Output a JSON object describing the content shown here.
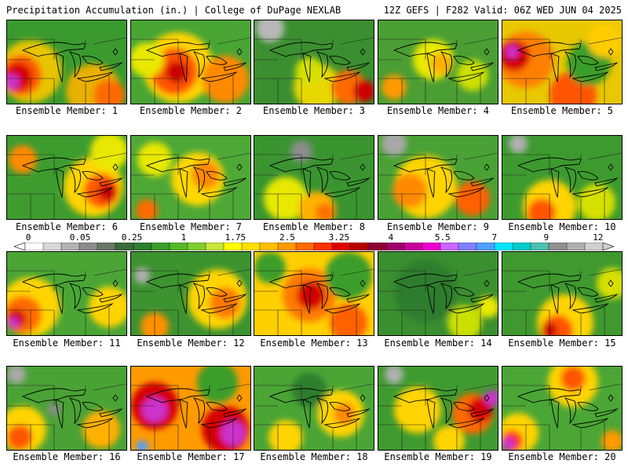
{
  "header": {
    "title_left": "Precipitation Accumulation (in.) | College of DuPage NEXLAB",
    "title_right": "12Z GEFS | F282 Valid: 06Z WED JUN 04 2025"
  },
  "colorbar": {
    "labels": [
      "0",
      "0.05",
      "0.25",
      "1",
      "1.75",
      "2.5",
      "3.25",
      "4",
      "5.5",
      "7",
      "9",
      "12"
    ],
    "colors": [
      "#ffffff",
      "#d8d8d8",
      "#b2b2b2",
      "#8c8c8c",
      "#667766",
      "#3a6b3a",
      "#2e7d2e",
      "#3b9d2a",
      "#55b82a",
      "#7fcf2f",
      "#c8e63a",
      "#ffff00",
      "#ffe000",
      "#ffc000",
      "#ff9900",
      "#ff6a00",
      "#ff3300",
      "#e00000",
      "#b80000",
      "#8c0033",
      "#a0006a",
      "#c8009a",
      "#ee00d0",
      "#cc66ff",
      "#7f7fff",
      "#4fa0ff",
      "#00e5ff",
      "#00cccc",
      "#4cc0b0",
      "#909090",
      "#b0b0b0",
      "#d0d0d0"
    ]
  },
  "panels": [
    {
      "caption": "Ensemble Member: 1",
      "base": "#3a9a2e",
      "blobs": [
        {
          "c": "#e8c400",
          "x": 30,
          "y": 65,
          "r": 40
        },
        {
          "c": "#ff5a00",
          "x": 18,
          "y": 70,
          "r": 26
        },
        {
          "c": "#d40000",
          "x": 14,
          "y": 72,
          "r": 18
        },
        {
          "c": "#cc33cc",
          "x": 6,
          "y": 78,
          "r": 10
        },
        {
          "c": "#e8b000",
          "x": 110,
          "y": 90,
          "r": 35
        },
        {
          "c": "#ff6a00",
          "x": 130,
          "y": 95,
          "r": 20
        }
      ]
    },
    {
      "caption": "Ensemble Member: 2",
      "base": "#49a534",
      "blobs": [
        {
          "c": "#ffd400",
          "x": 60,
          "y": 60,
          "r": 45
        },
        {
          "c": "#ff5500",
          "x": 55,
          "y": 65,
          "r": 30
        },
        {
          "c": "#cc0000",
          "x": 58,
          "y": 66,
          "r": 14
        },
        {
          "c": "#ff8a00",
          "x": 120,
          "y": 75,
          "r": 30
        },
        {
          "c": "#e8e800",
          "x": 20,
          "y": 50,
          "r": 22
        }
      ]
    },
    {
      "caption": "Ensemble Member: 3",
      "base": "#3b8f30",
      "blobs": [
        {
          "c": "#b8b8b8",
          "x": 20,
          "y": 10,
          "r": 18
        },
        {
          "c": "#e8d800",
          "x": 80,
          "y": 85,
          "r": 30
        },
        {
          "c": "#ff6a00",
          "x": 120,
          "y": 85,
          "r": 22
        },
        {
          "c": "#cc0000",
          "x": 140,
          "y": 90,
          "r": 14
        },
        {
          "c": "#d6e000",
          "x": 70,
          "y": 65,
          "r": 18
        }
      ]
    },
    {
      "caption": "Ensemble Member: 4",
      "base": "#4a9e33",
      "blobs": [
        {
          "c": "#e8e800",
          "x": 70,
          "y": 50,
          "r": 26
        },
        {
          "c": "#ffb000",
          "x": 80,
          "y": 55,
          "r": 14
        },
        {
          "c": "#cce000",
          "x": 120,
          "y": 70,
          "r": 20
        },
        {
          "c": "#ff9a00",
          "x": 20,
          "y": 85,
          "r": 16
        }
      ]
    },
    {
      "caption": "Ensemble Member: 5",
      "base": "#e8c800",
      "blobs": [
        {
          "c": "#ff8000",
          "x": 30,
          "y": 50,
          "r": 36
        },
        {
          "c": "#d40000",
          "x": 15,
          "y": 45,
          "r": 20
        },
        {
          "c": "#cc33cc",
          "x": 12,
          "y": 40,
          "r": 8
        },
        {
          "c": "#ff5500",
          "x": 90,
          "y": 95,
          "r": 30
        },
        {
          "c": "#3b9d2a",
          "x": 110,
          "y": 55,
          "r": 28
        },
        {
          "c": "#ffcc00",
          "x": 130,
          "y": 25,
          "r": 22
        }
      ]
    },
    {
      "caption": "Ensemble Member: 6",
      "base": "#3e9c2f",
      "blobs": [
        {
          "c": "#ffd400",
          "x": 110,
          "y": 65,
          "r": 38
        },
        {
          "c": "#ff5a00",
          "x": 120,
          "y": 70,
          "r": 22
        },
        {
          "c": "#d40000",
          "x": 128,
          "y": 72,
          "r": 12
        },
        {
          "c": "#ff8a00",
          "x": 20,
          "y": 30,
          "r": 18
        },
        {
          "c": "#e8e800",
          "x": 130,
          "y": 20,
          "r": 24
        }
      ]
    },
    {
      "caption": "Ensemble Member: 7",
      "base": "#4ea836",
      "blobs": [
        {
          "c": "#ffd800",
          "x": 85,
          "y": 55,
          "r": 34
        },
        {
          "c": "#ff8800",
          "x": 95,
          "y": 50,
          "r": 18
        },
        {
          "c": "#e8e800",
          "x": 30,
          "y": 30,
          "r": 22
        },
        {
          "c": "#ff6a00",
          "x": 20,
          "y": 95,
          "r": 14
        }
      ]
    },
    {
      "caption": "Ensemble Member: 8",
      "base": "#3a9430",
      "blobs": [
        {
          "c": "#e8e800",
          "x": 40,
          "y": 80,
          "r": 28
        },
        {
          "c": "#ffb000",
          "x": 80,
          "y": 95,
          "r": 24
        },
        {
          "c": "#ff7000",
          "x": 90,
          "y": 98,
          "r": 12
        },
        {
          "c": "#8c8c8c",
          "x": 60,
          "y": 20,
          "r": 14
        }
      ]
    },
    {
      "caption": "Ensemble Member: 9",
      "base": "#4aa135",
      "blobs": [
        {
          "c": "#ffd400",
          "x": 60,
          "y": 65,
          "r": 40
        },
        {
          "c": "#ff8a00",
          "x": 40,
          "y": 70,
          "r": 22
        },
        {
          "c": "#ff6000",
          "x": 120,
          "y": 80,
          "r": 22
        },
        {
          "c": "#a8a8a8",
          "x": 20,
          "y": 10,
          "r": 16
        }
      ]
    },
    {
      "caption": "Ensemble Member: 10",
      "base": "#3d9a2f",
      "blobs": [
        {
          "c": "#ffd400",
          "x": 60,
          "y": 90,
          "r": 34
        },
        {
          "c": "#ff5500",
          "x": 50,
          "y": 98,
          "r": 18
        },
        {
          "c": "#b0b0b0",
          "x": 20,
          "y": 10,
          "r": 12
        },
        {
          "c": "#d6e000",
          "x": 120,
          "y": 85,
          "r": 24
        }
      ]
    },
    {
      "caption": "Ensemble Member: 11",
      "base": "#4aa535",
      "blobs": [
        {
          "c": "#ffd400",
          "x": 30,
          "y": 70,
          "r": 38
        },
        {
          "c": "#ff6a00",
          "x": 20,
          "y": 80,
          "r": 24
        },
        {
          "c": "#cc0000",
          "x": 12,
          "y": 85,
          "r": 12
        },
        {
          "c": "#cc33cc",
          "x": 8,
          "y": 90,
          "r": 7
        },
        {
          "c": "#ffd400",
          "x": 130,
          "y": 70,
          "r": 26
        }
      ]
    },
    {
      "caption": "Ensemble Member: 12",
      "base": "#3c932f",
      "blobs": [
        {
          "c": "#ffd400",
          "x": 110,
          "y": 60,
          "r": 38
        },
        {
          "c": "#ff7a00",
          "x": 120,
          "y": 65,
          "r": 20
        },
        {
          "c": "#ff9000",
          "x": 30,
          "y": 95,
          "r": 18
        },
        {
          "c": "#b0b0b0",
          "x": 14,
          "y": 30,
          "r": 10
        }
      ]
    },
    {
      "caption": "Ensemble Member: 13",
      "base": "#ffd000",
      "blobs": [
        {
          "c": "#ff7a00",
          "x": 70,
          "y": 55,
          "r": 34
        },
        {
          "c": "#d40000",
          "x": 72,
          "y": 55,
          "r": 18
        },
        {
          "c": "#3b9d2a",
          "x": 120,
          "y": 30,
          "r": 30
        },
        {
          "c": "#3b9d2a",
          "x": 20,
          "y": 20,
          "r": 20
        },
        {
          "c": "#ff6000",
          "x": 120,
          "y": 90,
          "r": 24
        }
      ]
    },
    {
      "caption": "Ensemble Member: 14",
      "base": "#3a8f2f",
      "blobs": [
        {
          "c": "#2e7d2e",
          "x": 60,
          "y": 50,
          "r": 40
        },
        {
          "c": "#cce000",
          "x": 110,
          "y": 90,
          "r": 22
        },
        {
          "c": "#e8e800",
          "x": 140,
          "y": 70,
          "r": 14
        }
      ]
    },
    {
      "caption": "Ensemble Member: 15",
      "base": "#3f992f",
      "blobs": [
        {
          "c": "#ffd400",
          "x": 80,
          "y": 90,
          "r": 36
        },
        {
          "c": "#ff5500",
          "x": 70,
          "y": 100,
          "r": 20
        },
        {
          "c": "#cc0000",
          "x": 60,
          "y": 100,
          "r": 10
        },
        {
          "c": "#d6e000",
          "x": 140,
          "y": 40,
          "r": 20
        }
      ]
    },
    {
      "caption": "Ensemble Member: 16",
      "base": "#4aa235",
      "blobs": [
        {
          "c": "#ffd400",
          "x": 20,
          "y": 80,
          "r": 30
        },
        {
          "c": "#ff5500",
          "x": 16,
          "y": 90,
          "r": 16
        },
        {
          "c": "#ffb000",
          "x": 120,
          "y": 80,
          "r": 24
        },
        {
          "c": "#a8a8a8",
          "x": 12,
          "y": 10,
          "r": 12
        },
        {
          "c": "#8c8c8c",
          "x": 60,
          "y": 55,
          "r": 8
        }
      ]
    },
    {
      "caption": "Ensemble Member: 17",
      "base": "#ff9a00",
      "blobs": [
        {
          "c": "#d40000",
          "x": 30,
          "y": 50,
          "r": 30
        },
        {
          "c": "#cc33cc",
          "x": 30,
          "y": 55,
          "r": 16
        },
        {
          "c": "#d40000",
          "x": 120,
          "y": 80,
          "r": 30
        },
        {
          "c": "#cc33cc",
          "x": 130,
          "y": 85,
          "r": 16
        },
        {
          "c": "#4fa0ff",
          "x": 14,
          "y": 102,
          "r": 8
        },
        {
          "c": "#3b9d2a",
          "x": 110,
          "y": 20,
          "r": 26
        }
      ]
    },
    {
      "caption": "Ensemble Member: 18",
      "base": "#4aa535",
      "blobs": [
        {
          "c": "#ffd400",
          "x": 110,
          "y": 60,
          "r": 30
        },
        {
          "c": "#ff8a00",
          "x": 115,
          "y": 60,
          "r": 14
        },
        {
          "c": "#ffd400",
          "x": 40,
          "y": 90,
          "r": 22
        },
        {
          "c": "#2e7d2e",
          "x": 70,
          "y": 30,
          "r": 22
        }
      ]
    },
    {
      "caption": "Ensemble Member: 19",
      "base": "#3f9a2f",
      "blobs": [
        {
          "c": "#ffd400",
          "x": 50,
          "y": 55,
          "r": 30
        },
        {
          "c": "#ff6a00",
          "x": 120,
          "y": 60,
          "r": 26
        },
        {
          "c": "#d40000",
          "x": 130,
          "y": 55,
          "r": 16
        },
        {
          "c": "#cc33cc",
          "x": 145,
          "y": 40,
          "r": 10
        },
        {
          "c": "#b0b0b0",
          "x": 20,
          "y": 10,
          "r": 12
        },
        {
          "c": "#ffd400",
          "x": 90,
          "y": 95,
          "r": 20
        }
      ]
    },
    {
      "caption": "Ensemble Member: 20",
      "base": "#4ba636",
      "blobs": [
        {
          "c": "#ffd400",
          "x": 90,
          "y": 20,
          "r": 32
        },
        {
          "c": "#ff5500",
          "x": 90,
          "y": 15,
          "r": 16
        },
        {
          "c": "#ffd400",
          "x": 20,
          "y": 85,
          "r": 26
        },
        {
          "c": "#ff3300",
          "x": 12,
          "y": 95,
          "r": 14
        },
        {
          "c": "#cc33cc",
          "x": 8,
          "y": 98,
          "r": 8
        },
        {
          "c": "#ff9a00",
          "x": 140,
          "y": 95,
          "r": 14
        }
      ]
    }
  ]
}
